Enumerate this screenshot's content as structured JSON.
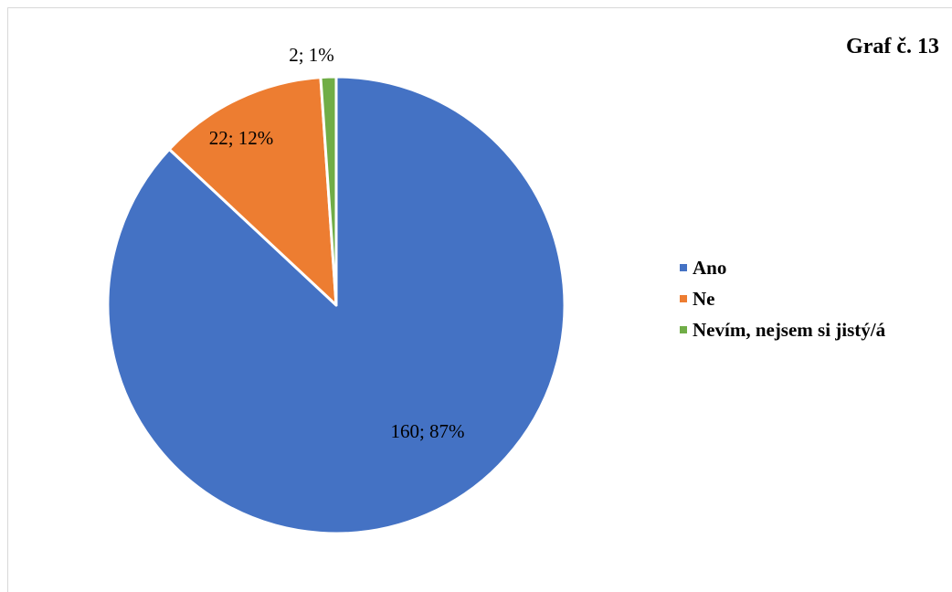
{
  "chart_data": {
    "type": "pie",
    "title": "Graf č. 13",
    "categories": [
      "Ano",
      "Ne",
      "Nevím, nejsem si jistý/á"
    ],
    "values": [
      160,
      22,
      2
    ],
    "percentages": [
      "87%",
      "12%",
      "1%"
    ],
    "data_labels": [
      "160; 87%",
      "22; 12%",
      "2; 1%"
    ],
    "colors": [
      "#4472C4",
      "#ED7D31",
      "#70AD47"
    ],
    "legend_position": "right",
    "start": "12 o'clock, clockwise"
  }
}
